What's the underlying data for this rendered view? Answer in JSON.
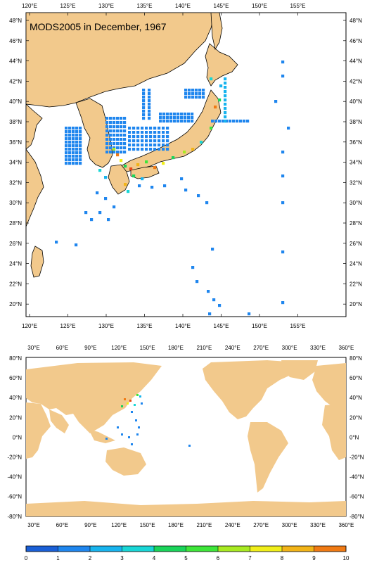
{
  "title": "MODS2005 in December, 1967",
  "colors": {
    "land": "#f2c98c",
    "ocean": "#ffffff",
    "coast": "#000000"
  },
  "map_top": {
    "lon_labels": [
      "120°E",
      "125°E",
      "130°E",
      "135°E",
      "140°E",
      "145°E",
      "150°E",
      "155°E"
    ],
    "lat_labels": [
      "48°N",
      "46°N",
      "44°N",
      "42°N",
      "40°N",
      "38°N",
      "36°N",
      "34°N",
      "32°N",
      "30°N",
      "28°N",
      "26°N",
      "24°N",
      "22°N",
      "20°N"
    ]
  },
  "map_bottom": {
    "lon_labels": [
      "30°E",
      "60°E",
      "90°E",
      "120°E",
      "150°E",
      "180°E",
      "210°E",
      "240°E",
      "270°E",
      "300°E",
      "330°E",
      "360°E"
    ],
    "lat_labels": [
      "80°N",
      "60°N",
      "40°N",
      "20°N",
      "0°N",
      "-20°N",
      "-40°N",
      "-60°N",
      "-80°N"
    ]
  },
  "colorbar": {
    "labels": [
      "0",
      "1",
      "2",
      "3",
      "4",
      "5",
      "6",
      "7",
      "8",
      "9",
      "10"
    ],
    "colors": [
      "#1a5fd6",
      "#1f86ee",
      "#18b4ee",
      "#19d6d6",
      "#1ad45a",
      "#3ee63a",
      "#a8ea22",
      "#f0ee1a",
      "#f2b418",
      "#f07a14",
      "#e84816"
    ]
  }
}
